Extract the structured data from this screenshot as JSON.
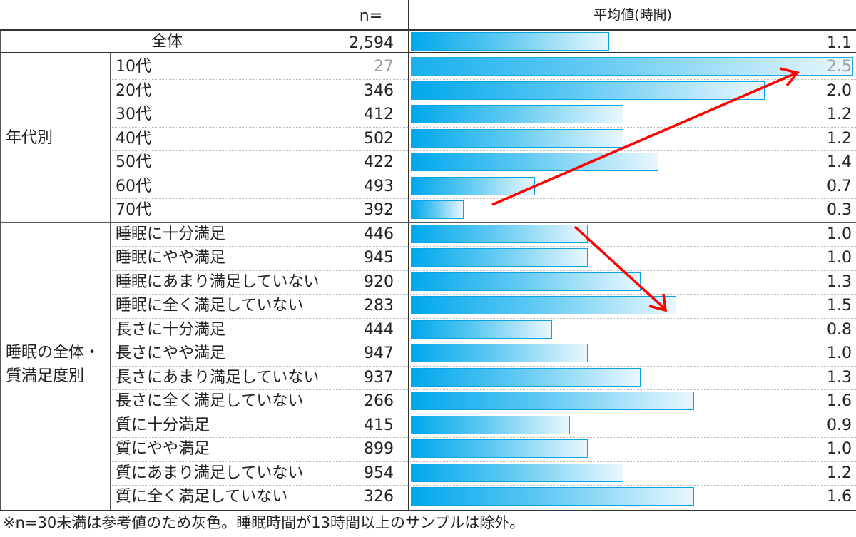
{
  "header": {
    "n_label": "n=",
    "avg_label": "平均値(時間)"
  },
  "total": {
    "label": "全体",
    "n": "2,594",
    "value": 1.1,
    "value_label": "1.1"
  },
  "groups": [
    {
      "name": "年代別",
      "line1": "年代別",
      "line2": ""
    },
    {
      "name": "睡眠の全体・質満足度別",
      "line1": "睡眠の全体・",
      "line2": "質満足度別"
    }
  ],
  "rows": [
    {
      "label": "10代",
      "n": "27",
      "value": 2.5,
      "value_label": "2.5",
      "grey": true
    },
    {
      "label": "20代",
      "n": "346",
      "value": 2.0,
      "value_label": "2.0"
    },
    {
      "label": "30代",
      "n": "412",
      "value": 1.2,
      "value_label": "1.2"
    },
    {
      "label": "40代",
      "n": "502",
      "value": 1.2,
      "value_label": "1.2"
    },
    {
      "label": "50代",
      "n": "422",
      "value": 1.4,
      "value_label": "1.4"
    },
    {
      "label": "60代",
      "n": "493",
      "value": 0.7,
      "value_label": "0.7"
    },
    {
      "label": "70代",
      "n": "392",
      "value": 0.3,
      "value_label": "0.3"
    },
    {
      "label": "睡眠に十分満足",
      "n": "446",
      "value": 1.0,
      "value_label": "1.0"
    },
    {
      "label": "睡眠にやや満足",
      "n": "945",
      "value": 1.0,
      "value_label": "1.0"
    },
    {
      "label": "睡眠にあまり満足していない",
      "n": "920",
      "value": 1.3,
      "value_label": "1.3"
    },
    {
      "label": "睡眠に全く満足していない",
      "n": "283",
      "value": 1.5,
      "value_label": "1.5"
    },
    {
      "label": "長さに十分満足",
      "n": "444",
      "value": 0.8,
      "value_label": "0.8"
    },
    {
      "label": "長さにやや満足",
      "n": "947",
      "value": 1.0,
      "value_label": "1.0"
    },
    {
      "label": "長さにあまり満足していない",
      "n": "937",
      "value": 1.3,
      "value_label": "1.3"
    },
    {
      "label": "長さに全く満足していない",
      "n": "266",
      "value": 1.6,
      "value_label": "1.6"
    },
    {
      "label": "質に十分満足",
      "n": "415",
      "value": 0.9,
      "value_label": "0.9"
    },
    {
      "label": "質にやや満足",
      "n": "899",
      "value": 1.0,
      "value_label": "1.0"
    },
    {
      "label": "質にあまり満足していない",
      "n": "954",
      "value": 1.2,
      "value_label": "1.2"
    },
    {
      "label": "質に全く満足していない",
      "n": "326",
      "value": 1.6,
      "value_label": "1.6"
    }
  ],
  "footnote": "※n=30未満は参考値のため灰色。睡眠時間が13時間以上のサンプルは除外。",
  "colors": {
    "bar": "#00a8ec",
    "arrow": "#ff0000",
    "grey_text": "#a0a0a0"
  },
  "chart_data": {
    "type": "bar",
    "orientation": "horizontal",
    "categories": [
      "全体",
      "10代",
      "20代",
      "30代",
      "40代",
      "50代",
      "60代",
      "70代",
      "睡眠に十分満足",
      "睡眠にやや満足",
      "睡眠にあまり満足していない",
      "睡眠に全く満足していない",
      "長さに十分満足",
      "長さにやや満足",
      "長さにあまり満足していない",
      "長さに全く満足していない",
      "質に十分満足",
      "質にやや満足",
      "質にあまり満足していない",
      "質に全く満足していない"
    ],
    "values": [
      1.1,
      2.5,
      2.0,
      1.2,
      1.2,
      1.4,
      0.7,
      0.3,
      1.0,
      1.0,
      1.3,
      1.5,
      0.8,
      1.0,
      1.3,
      1.6,
      0.9,
      1.0,
      1.2,
      1.6
    ],
    "n": [
      2594,
      27,
      346,
      412,
      502,
      422,
      493,
      392,
      446,
      945,
      920,
      283,
      444,
      947,
      937,
      266,
      415,
      899,
      954,
      326
    ],
    "title": "平均値(時間)",
    "xlabel": "",
    "ylabel": "",
    "xlim": [
      0,
      2.5
    ],
    "grid": false,
    "legend": "none"
  }
}
